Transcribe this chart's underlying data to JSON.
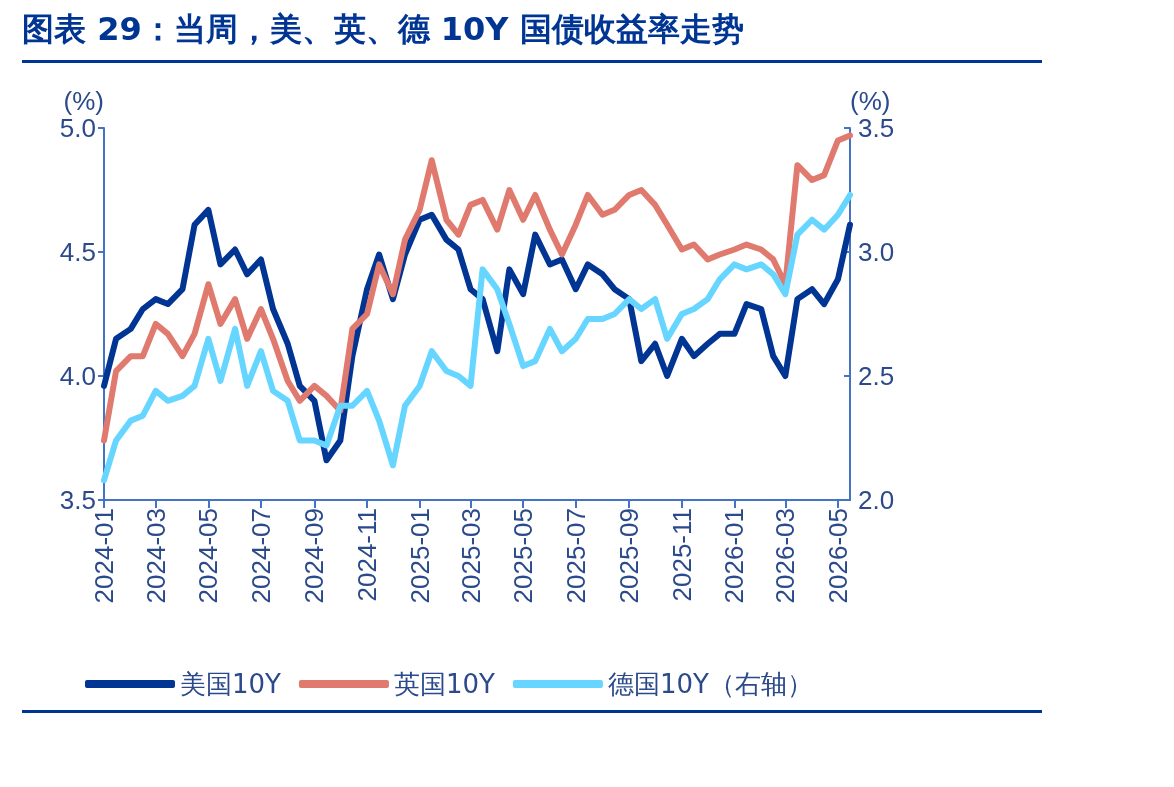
{
  "chart_data": {
    "type": "line",
    "title": "图表 29：当周，美、英、德 10Y 国债收益率走势",
    "ylabel": "(%)",
    "y2label": "(%)",
    "x": [
      "2024-01-01",
      "2024-01-15",
      "2024-02-01",
      "2024-02-15",
      "2024-03-01",
      "2024-03-15",
      "2024-04-01",
      "2024-04-15",
      "2024-05-01",
      "2024-05-15",
      "2024-06-01",
      "2024-06-15",
      "2024-07-01",
      "2024-07-15",
      "2024-08-01",
      "2024-08-15",
      "2024-09-01",
      "2024-09-15",
      "2024-10-01",
      "2024-10-15",
      "2024-11-01",
      "2024-11-15",
      "2024-12-01",
      "2024-12-15",
      "2025-01-01",
      "2025-01-15",
      "2025-02-01",
      "2025-02-15",
      "2025-03-01",
      "2025-03-15",
      "2025-04-01",
      "2025-04-15",
      "2025-05-01",
      "2025-05-15",
      "2025-06-01",
      "2025-06-15",
      "2025-07-01",
      "2025-07-15",
      "2025-08-01",
      "2025-08-15",
      "2025-09-01",
      "2025-09-15",
      "2025-10-01",
      "2025-10-15",
      "2025-11-01",
      "2025-11-15",
      "2025-12-01",
      "2025-12-15",
      "2026-01-01",
      "2026-01-15",
      "2026-02-01",
      "2026-02-15",
      "2026-03-01",
      "2026-03-15",
      "2026-04-01",
      "2026-04-15",
      "2026-05-01",
      "2026-05-15"
    ],
    "series": [
      {
        "name": "美国10Y",
        "color": "#003594",
        "values": [
          3.96,
          4.15,
          4.19,
          4.27,
          4.31,
          4.29,
          4.35,
          4.61,
          4.67,
          4.45,
          4.51,
          4.41,
          4.47,
          4.27,
          4.13,
          3.96,
          3.9,
          3.66,
          3.74,
          4.08,
          4.35,
          4.49,
          4.31,
          4.49,
          4.63,
          4.65,
          4.55,
          4.51,
          4.35,
          4.31,
          4.1,
          4.43,
          4.33,
          4.57,
          4.45,
          4.47,
          4.35,
          4.45,
          4.41,
          4.35,
          4.31,
          4.06,
          4.13,
          4.0,
          4.15,
          4.08,
          4.13,
          4.17,
          4.17,
          4.29,
          4.27,
          4.08,
          4.0,
          4.31,
          4.35,
          4.29,
          4.39,
          4.61
        ]
      },
      {
        "name": "英国10Y",
        "color": "#e07a6e",
        "values": [
          3.74,
          4.02,
          4.08,
          4.08,
          4.21,
          4.17,
          4.08,
          4.17,
          4.37,
          4.21,
          4.31,
          4.15,
          4.27,
          4.15,
          3.98,
          3.9,
          3.96,
          3.92,
          3.86,
          4.19,
          4.25,
          4.45,
          4.33,
          4.55,
          4.67,
          4.87,
          4.63,
          4.57,
          4.69,
          4.71,
          4.59,
          4.75,
          4.63,
          4.73,
          4.59,
          4.49,
          4.61,
          4.73,
          4.65,
          4.67,
          4.73,
          4.75,
          4.69,
          4.61,
          4.51,
          4.53,
          4.47,
          4.49,
          4.51,
          4.53,
          4.51,
          4.47,
          4.37,
          4.85,
          4.79,
          4.81,
          4.95,
          4.97
        ]
      },
      {
        "name": "德国10Y（右轴）",
        "color": "#66d5ff",
        "axis": "y2",
        "values": [
          2.08,
          2.24,
          2.32,
          2.34,
          2.44,
          2.4,
          2.42,
          2.46,
          2.65,
          2.48,
          2.69,
          2.46,
          2.6,
          2.44,
          2.4,
          2.24,
          2.24,
          2.22,
          2.38,
          2.38,
          2.44,
          2.32,
          2.14,
          2.38,
          2.46,
          2.6,
          2.52,
          2.5,
          2.46,
          2.93,
          2.85,
          2.71,
          2.54,
          2.56,
          2.69,
          2.6,
          2.65,
          2.73,
          2.73,
          2.75,
          2.81,
          2.77,
          2.81,
          2.65,
          2.75,
          2.77,
          2.81,
          2.89,
          2.95,
          2.93,
          2.95,
          2.91,
          2.83,
          3.07,
          3.13,
          3.09,
          3.15,
          3.23
        ]
      }
    ],
    "xlim": [
      "2024-01-01",
      "2026-05-15"
    ],
    "xticks": [
      "2024-01",
      "2024-03",
      "2024-05",
      "2024-07",
      "2024-09",
      "2024-11",
      "2025-01",
      "2025-03",
      "2025-05",
      "2025-07",
      "2025-09",
      "2025-11",
      "2026-01",
      "2026-03",
      "2026-05"
    ],
    "ylim": [
      3.5,
      5.0
    ],
    "yticks": [
      {
        "value": 3.5,
        "label": "3.5"
      },
      {
        "value": 4.0,
        "label": "4.0"
      },
      {
        "value": 4.5,
        "label": "4.5"
      },
      {
        "value": 5.0,
        "label": "5.0"
      }
    ],
    "y2lim": [
      2.0,
      3.5
    ],
    "y2ticks": [
      {
        "value": 2.0,
        "label": "2.0"
      },
      {
        "value": 2.5,
        "label": "2.5"
      },
      {
        "value": 3.0,
        "label": "3.0"
      },
      {
        "value": 3.5,
        "label": "3.5"
      }
    ],
    "grid": false,
    "legend": "bottom",
    "marker": "none",
    "line_style": "solid"
  }
}
